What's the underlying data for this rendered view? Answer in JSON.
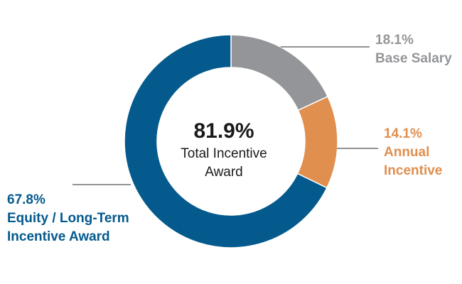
{
  "chart_data": {
    "type": "pie",
    "center": {
      "value": "81.9%",
      "label_line1": "Total Incentive",
      "label_line2": "Award"
    },
    "slices": [
      {
        "name_line1": "Base Salary",
        "name_line2": "",
        "value": 18.1,
        "value_label": "18.1%",
        "color": "#939598"
      },
      {
        "name_line1": "Annual",
        "name_line2": "Incentive",
        "value": 14.1,
        "value_label": "14.1%",
        "color": "#e08f4f"
      },
      {
        "name_line1": "Equity / Long-Term",
        "name_line2": "Incentive Award",
        "value": 67.8,
        "value_label": "67.8%",
        "color": "#045a8d"
      }
    ]
  }
}
